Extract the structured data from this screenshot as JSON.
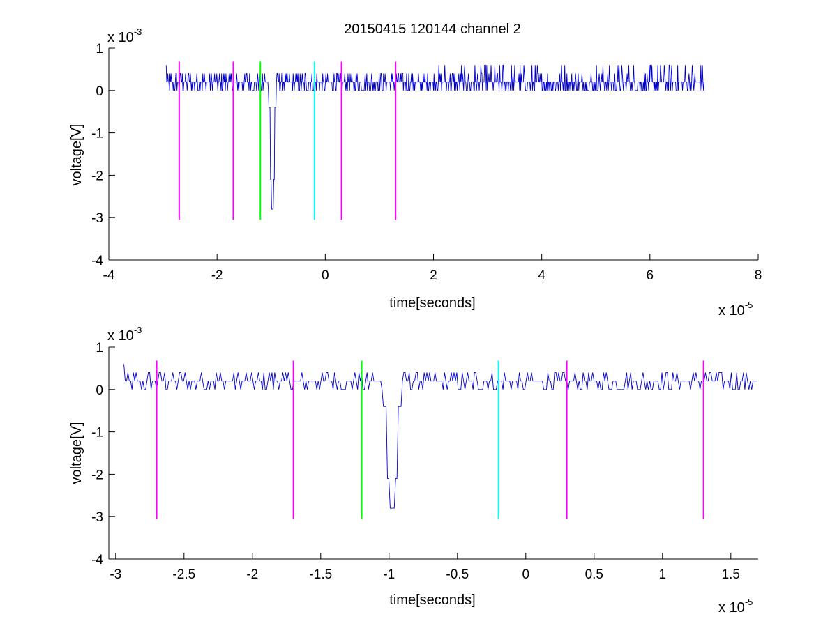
{
  "chart_data": [
    {
      "type": "line",
      "title": "20150415 120144 channel 2",
      "xlabel": "time[seconds]",
      "ylabel": "voltage[V]",
      "x_multiplier": {
        "base": "x 10",
        "exp": "-5"
      },
      "y_multiplier": {
        "base": "x 10",
        "exp": "-3"
      },
      "xlim": [
        -4,
        8
      ],
      "ylim": [
        -4,
        1
      ],
      "x_ticks": [
        -4,
        -2,
        0,
        2,
        4,
        6,
        8
      ],
      "x_tick_labels": [
        "-4",
        "-2",
        "0",
        "2",
        "4",
        "6",
        "8"
      ],
      "y_ticks": [
        -4,
        -3,
        -2,
        -1,
        0,
        1
      ],
      "y_tick_labels": [
        "-4",
        "-3",
        "-2",
        "-1",
        "0",
        "1"
      ],
      "grid": false,
      "signal": {
        "color": "#0000cc",
        "x_start": -2.94,
        "x_end": 7.0,
        "baseline": 0.15,
        "noise_levels": [
          0,
          0.2,
          0.4
        ],
        "spike": {
          "x": -0.98,
          "min": -2.8
        }
      },
      "markers": [
        {
          "x": -2.7,
          "color": "#ff00ff",
          "ymin": -3.05,
          "ymax": 0.68
        },
        {
          "x": -1.7,
          "color": "#ff00ff",
          "ymin": -3.05,
          "ymax": 0.68
        },
        {
          "x": -1.2,
          "color": "#00ff00",
          "ymin": -3.05,
          "ymax": 0.68
        },
        {
          "x": -0.2,
          "color": "#00ffff",
          "ymin": -3.05,
          "ymax": 0.68
        },
        {
          "x": 0.3,
          "color": "#ff00ff",
          "ymin": -3.05,
          "ymax": 0.68
        },
        {
          "x": 1.3,
          "color": "#ff00ff",
          "ymin": -3.05,
          "ymax": 0.68
        }
      ]
    },
    {
      "type": "line",
      "title": "",
      "xlabel": "time[seconds]",
      "ylabel": "voltage[V]",
      "x_multiplier": {
        "base": "x 10",
        "exp": "-5"
      },
      "y_multiplier": {
        "base": "x 10",
        "exp": "-3"
      },
      "xlim": [
        -3.05,
        1.7
      ],
      "ylim": [
        -4,
        1
      ],
      "x_ticks": [
        -3,
        -2.5,
        -2,
        -1.5,
        -1,
        -0.5,
        0,
        0.5,
        1,
        1.5
      ],
      "x_tick_labels": [
        "-3",
        "-2.5",
        "-2",
        "-1.5",
        "-1",
        "-0.5",
        "0",
        "0.5",
        "1",
        "1.5"
      ],
      "y_ticks": [
        -4,
        -3,
        -2,
        -1,
        0,
        1
      ],
      "y_tick_labels": [
        "-4",
        "-3",
        "-2",
        "-1",
        "0",
        "1"
      ],
      "grid": false,
      "signal": {
        "color": "#0000cc",
        "x_start": -2.94,
        "x_end": 1.7,
        "baseline": 0.15,
        "noise_levels": [
          0,
          0.2,
          0.4
        ],
        "spike": {
          "x": -0.98,
          "min": -2.8
        }
      },
      "markers": [
        {
          "x": -2.7,
          "color": "#ff00ff",
          "ymin": -3.05,
          "ymax": 0.68
        },
        {
          "x": -1.7,
          "color": "#ff00ff",
          "ymin": -3.05,
          "ymax": 0.68
        },
        {
          "x": -1.2,
          "color": "#00ff00",
          "ymin": -3.05,
          "ymax": 0.68
        },
        {
          "x": -0.2,
          "color": "#00ffff",
          "ymin": -3.05,
          "ymax": 0.68
        },
        {
          "x": 0.3,
          "color": "#ff00ff",
          "ymin": -3.05,
          "ymax": 0.68
        },
        {
          "x": 1.3,
          "color": "#ff00ff",
          "ymin": -3.05,
          "ymax": 0.68
        }
      ]
    }
  ]
}
